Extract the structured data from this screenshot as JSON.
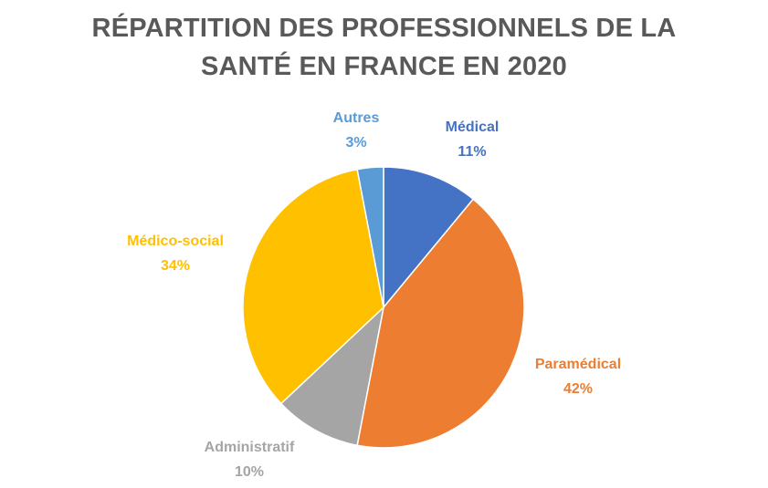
{
  "chart_data": {
    "type": "pie",
    "title_lines": [
      "RÉPARTITION DES PROFESSIONNELS DE LA",
      "SANTÉ EN FRANCE EN 2020"
    ],
    "slices": [
      {
        "label": "Médical",
        "value": 11,
        "value_label": "11%",
        "color": "#4472C4"
      },
      {
        "label": "Paramédical",
        "value": 42,
        "value_label": "42%",
        "color": "#ED7D31"
      },
      {
        "label": "Administratif",
        "value": 10,
        "value_label": "10%",
        "color": "#A5A5A5"
      },
      {
        "label": "Médico-social",
        "value": 34,
        "value_label": "34%",
        "color": "#FFC000"
      },
      {
        "label": "Autres",
        "value": 3,
        "value_label": "3%",
        "color": "#5B9BD5"
      }
    ],
    "legend": "none"
  }
}
